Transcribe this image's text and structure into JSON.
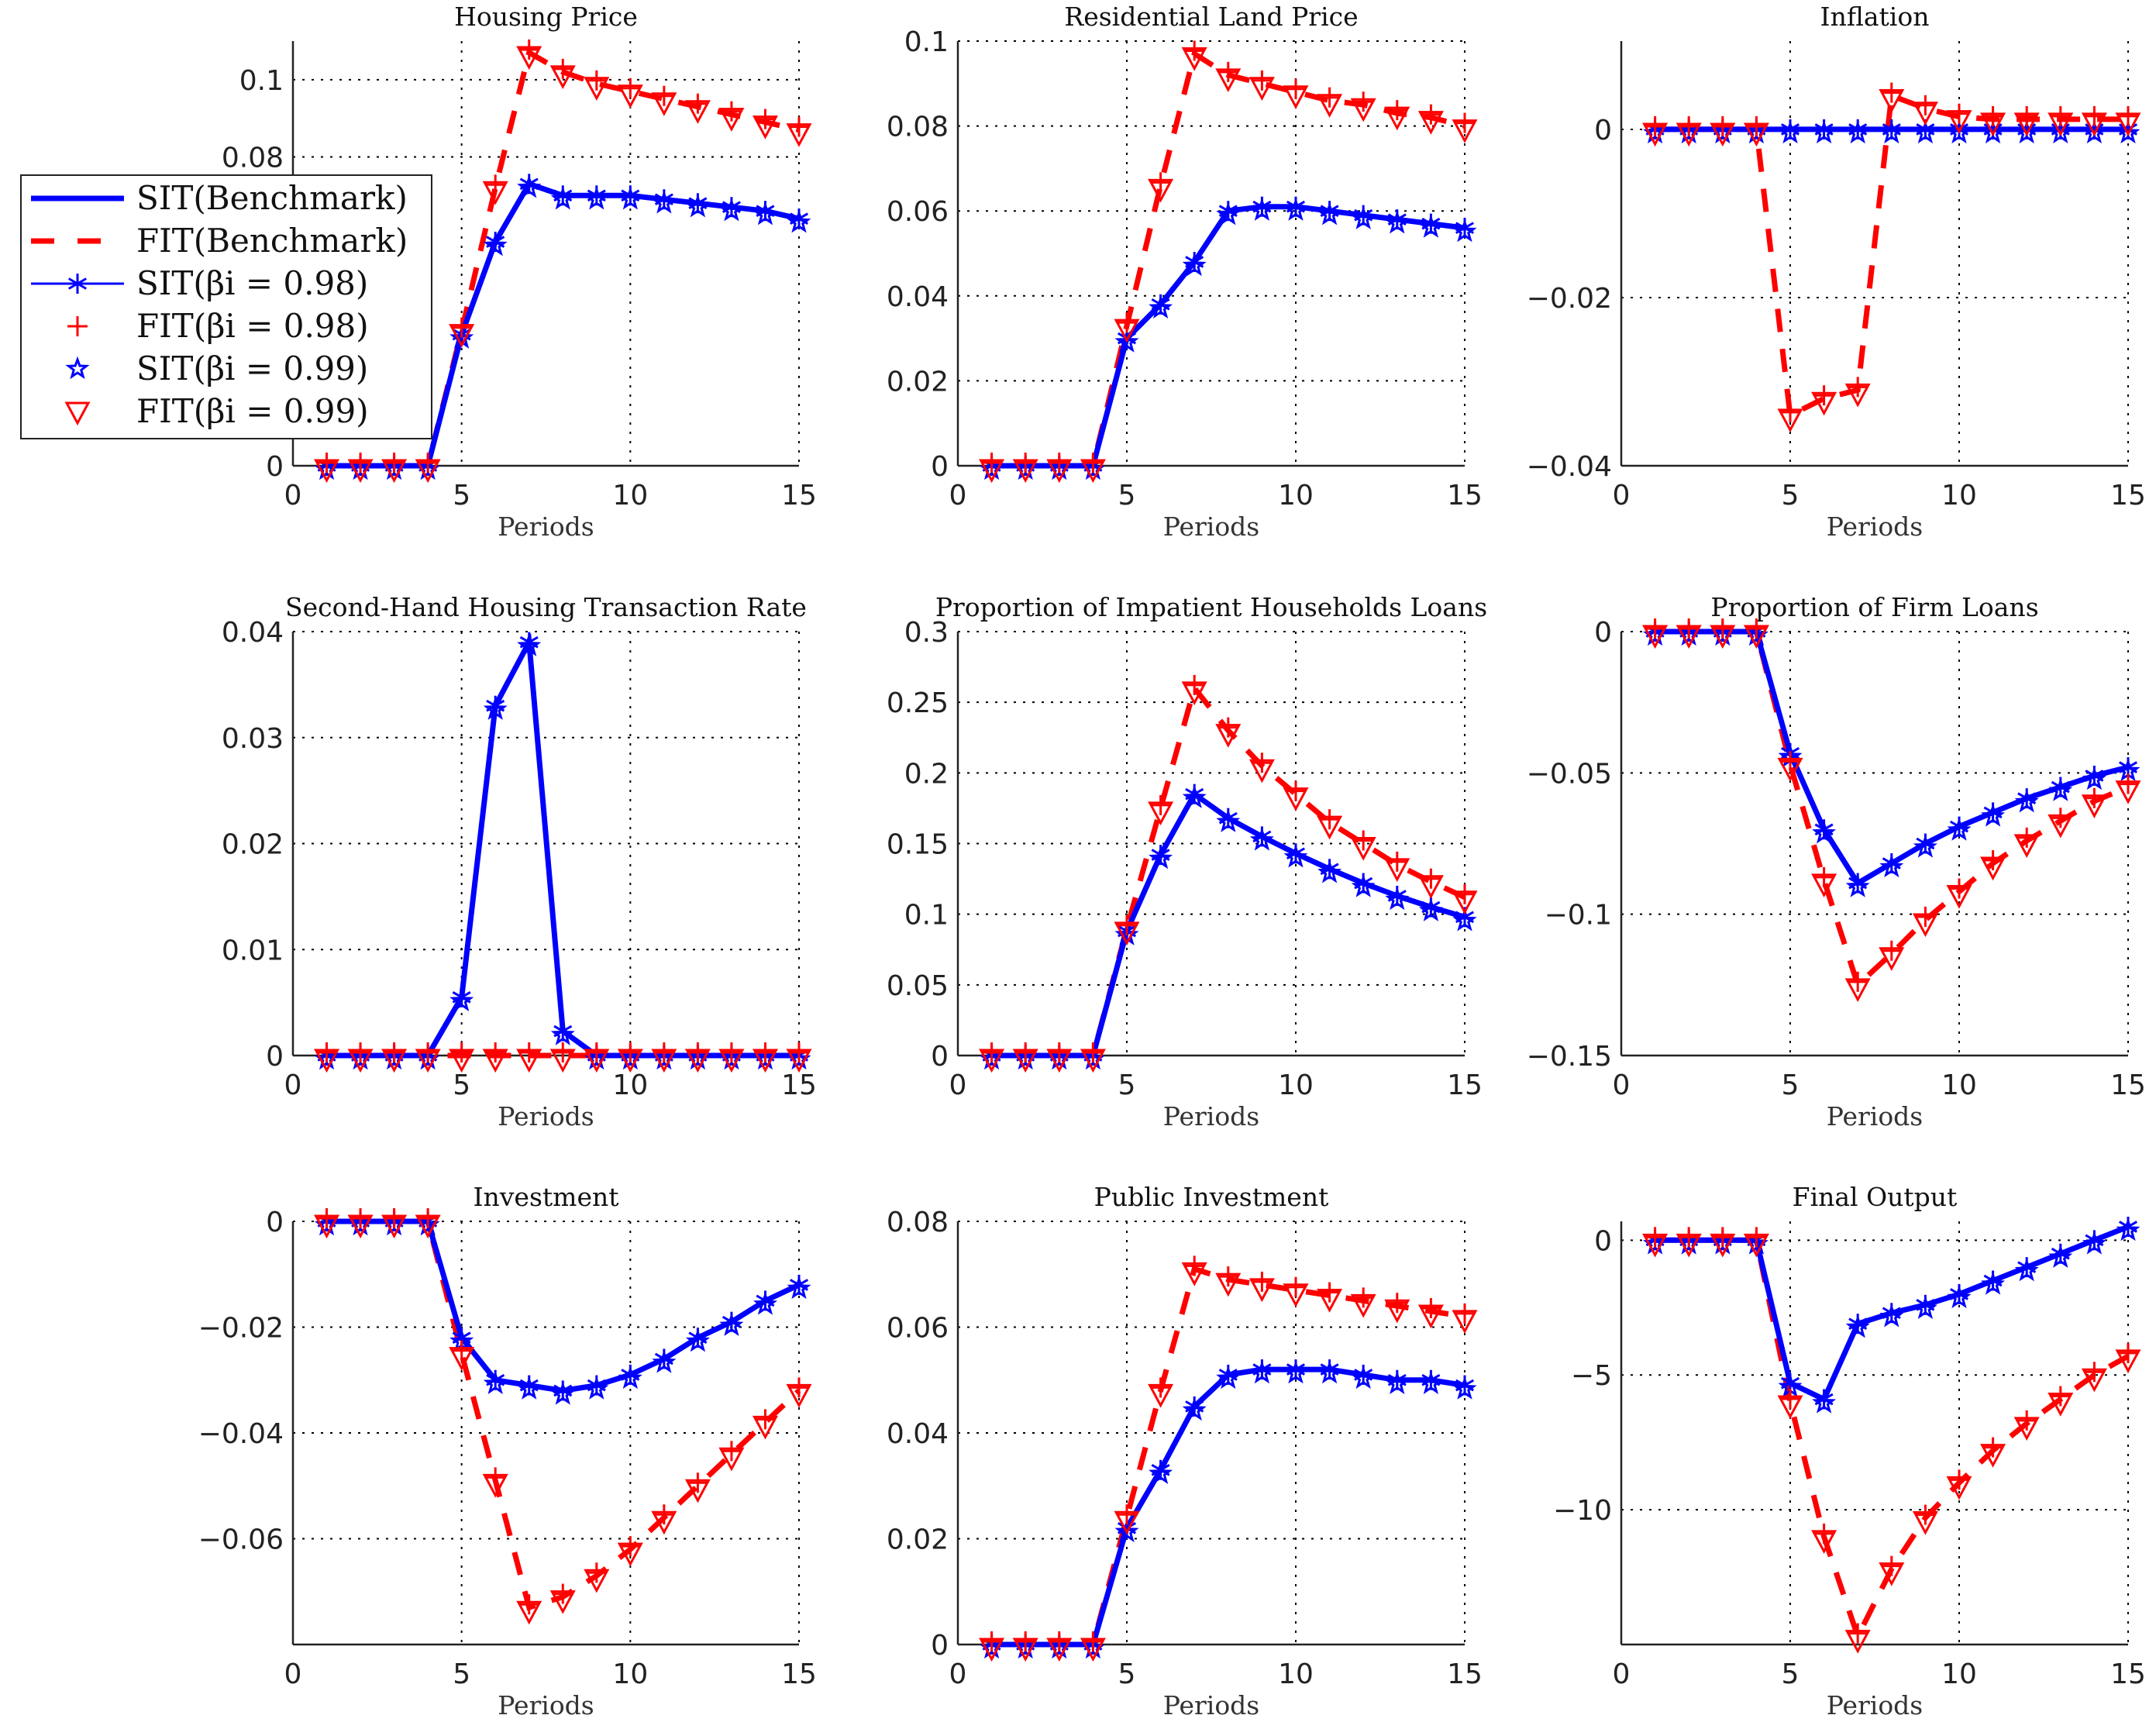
{
  "chart_data": {
    "type": "line",
    "legend": {
      "placement": "left, overlapping first panel",
      "entries": [
        "SIT(Benchmark)",
        "FIT(Benchmark)",
        "SIT(βi = 0.98)",
        "FIT(βi = 0.98)",
        "SIT(βi = 0.99)",
        "FIT(βi = 0.99)"
      ]
    },
    "colors": {
      "sit": "#0000ff",
      "fit": "#ff0000"
    },
    "x": [
      1,
      2,
      3,
      4,
      5,
      6,
      7,
      8,
      9,
      10,
      11,
      12,
      13,
      14,
      15
    ],
    "xlim": [
      0,
      15
    ],
    "xticks": [
      "0",
      "5",
      "10",
      "15"
    ],
    "grid": true,
    "panels": [
      {
        "title": "Housing Price",
        "xlabel": "Periods",
        "ylim": [
          0,
          0.11
        ],
        "yticks": [
          0,
          0.08,
          0.1
        ],
        "yticklabels": [
          "0",
          "0.08",
          "0.1"
        ],
        "sit": [
          0,
          0,
          0,
          0,
          0.034,
          0.058,
          0.073,
          0.07,
          0.07,
          0.07,
          0.069,
          0.068,
          0.067,
          0.066,
          0.064
        ],
        "fit": [
          0,
          0,
          0,
          0,
          0.035,
          0.072,
          0.107,
          0.102,
          0.099,
          0.097,
          0.095,
          0.093,
          0.091,
          0.089,
          0.087
        ]
      },
      {
        "title": "Residential Land Price",
        "xlabel": "Periods",
        "ylim": [
          0,
          0.1
        ],
        "yticks": [
          0,
          0.02,
          0.04,
          0.06,
          0.08,
          0.1
        ],
        "yticklabels": [
          "0",
          "0.02",
          "0.04",
          "0.06",
          "0.08",
          "0.1"
        ],
        "sit": [
          0,
          0,
          0,
          0,
          0.03,
          0.038,
          0.048,
          0.06,
          0.061,
          0.061,
          0.06,
          0.059,
          0.058,
          0.057,
          0.056
        ],
        "fit": [
          0,
          0,
          0,
          0,
          0.033,
          0.066,
          0.097,
          0.092,
          0.09,
          0.088,
          0.086,
          0.085,
          0.083,
          0.082,
          0.08
        ]
      },
      {
        "title": "Inflation",
        "xlabel": "Periods",
        "ylim": [
          -0.04,
          0.0105
        ],
        "yticks": [
          -0.04,
          -0.02,
          0
        ],
        "yticklabels": [
          "−0.04",
          "−0.02",
          "0"
        ],
        "sit": [
          0,
          0,
          0,
          0,
          0,
          0,
          0,
          0,
          0,
          0,
          0,
          0,
          0,
          0,
          0
        ],
        "fit": [
          0,
          0,
          0,
          0,
          -0.034,
          -0.032,
          -0.031,
          0.004,
          0.0025,
          0.0015,
          0.0012,
          0.0012,
          0.0012,
          0.0012,
          0.0012
        ]
      },
      {
        "title": "Second-Hand Housing Transaction Rate",
        "xlabel": "Periods",
        "ylim": [
          0,
          0.04
        ],
        "yticks": [
          0,
          0.01,
          0.02,
          0.03,
          0.04
        ],
        "yticklabels": [
          "0",
          "0.01",
          "0.02",
          "0.03",
          "0.04"
        ],
        "sit": [
          0,
          0,
          0,
          0,
          0.0055,
          0.033,
          0.039,
          0.0023,
          0,
          0,
          0,
          0,
          0,
          0,
          0
        ],
        "fit": [
          0,
          0,
          0,
          0,
          0,
          0,
          0,
          0,
          0,
          0,
          0,
          0,
          0,
          0,
          0
        ]
      },
      {
        "title": "Proportion of Impatient Households Loans",
        "xlabel": "Periods",
        "ylim": [
          0,
          0.3
        ],
        "yticks": [
          0,
          0.05,
          0.1,
          0.15,
          0.2,
          0.25,
          0.3
        ],
        "yticklabels": [
          "0",
          "0.05",
          "0.1",
          "0.15",
          "0.2",
          "0.25",
          "0.3"
        ],
        "sit": [
          0,
          0,
          0,
          0,
          0.088,
          0.142,
          0.185,
          0.168,
          0.155,
          0.143,
          0.132,
          0.122,
          0.113,
          0.105,
          0.098
        ],
        "fit": [
          0,
          0,
          0,
          0,
          0.09,
          0.175,
          0.26,
          0.23,
          0.205,
          0.185,
          0.165,
          0.15,
          0.135,
          0.123,
          0.112
        ]
      },
      {
        "title": "Proportion of Firm Loans",
        "xlabel": "Periods",
        "ylim": [
          -0.15,
          0
        ],
        "yticks": [
          -0.15,
          -0.1,
          -0.05,
          0
        ],
        "yticklabels": [
          "−0.15",
          "−0.1",
          "−0.05",
          "0"
        ],
        "sit": [
          0,
          0,
          0,
          0,
          -0.043,
          -0.07,
          -0.089,
          -0.082,
          -0.075,
          -0.069,
          -0.064,
          -0.059,
          -0.055,
          -0.051,
          -0.048
        ],
        "fit": [
          0,
          0,
          0,
          0,
          -0.047,
          -0.088,
          -0.125,
          -0.114,
          -0.102,
          -0.092,
          -0.082,
          -0.074,
          -0.067,
          -0.06,
          -0.055
        ]
      },
      {
        "title": "Investment",
        "xlabel": "Periods",
        "ylim": [
          -0.08,
          0
        ],
        "yticks": [
          -0.06,
          -0.04,
          -0.02,
          0
        ],
        "yticklabels": [
          "−0.06",
          "−0.04",
          "−0.02",
          "0"
        ],
        "sit": [
          0,
          0,
          0,
          0,
          -0.022,
          -0.03,
          -0.031,
          -0.032,
          -0.031,
          -0.029,
          -0.026,
          -0.022,
          -0.019,
          -0.015,
          -0.012
        ],
        "fit": [
          0,
          0,
          0,
          0,
          -0.025,
          -0.049,
          -0.073,
          -0.071,
          -0.067,
          -0.062,
          -0.056,
          -0.05,
          -0.044,
          -0.038,
          -0.032
        ]
      },
      {
        "title": "Public Investment",
        "xlabel": "Periods",
        "ylim": [
          0,
          0.08
        ],
        "yticks": [
          0,
          0.02,
          0.04,
          0.06,
          0.08
        ],
        "yticklabels": [
          "0",
          "0.02",
          "0.04",
          "0.06",
          "0.08"
        ],
        "sit": [
          0,
          0,
          0,
          0,
          0.022,
          0.033,
          0.045,
          0.051,
          0.052,
          0.052,
          0.052,
          0.051,
          0.05,
          0.05,
          0.049
        ],
        "fit": [
          0,
          0,
          0,
          0,
          0.024,
          0.048,
          0.071,
          0.069,
          0.068,
          0.067,
          0.066,
          0.065,
          0.064,
          0.063,
          0.062
        ]
      },
      {
        "title": "Final Output",
        "xlabel": "Periods",
        "ylim": [
          -15,
          0.7
        ],
        "yticks": [
          -10,
          -5,
          0
        ],
        "yticklabels": [
          "−10",
          "−5",
          "0"
        ],
        "sit": [
          0,
          0,
          0,
          0,
          -5.3,
          -5.9,
          -3.1,
          -2.7,
          -2.4,
          -2.0,
          -1.5,
          -1.0,
          -0.5,
          0,
          0.5
        ],
        "fit": [
          0,
          0,
          0,
          0,
          -6.0,
          -11.0,
          -14.7,
          -12.2,
          -10.3,
          -9.0,
          -7.8,
          -6.8,
          -5.9,
          -5.0,
          -4.3
        ]
      }
    ]
  }
}
